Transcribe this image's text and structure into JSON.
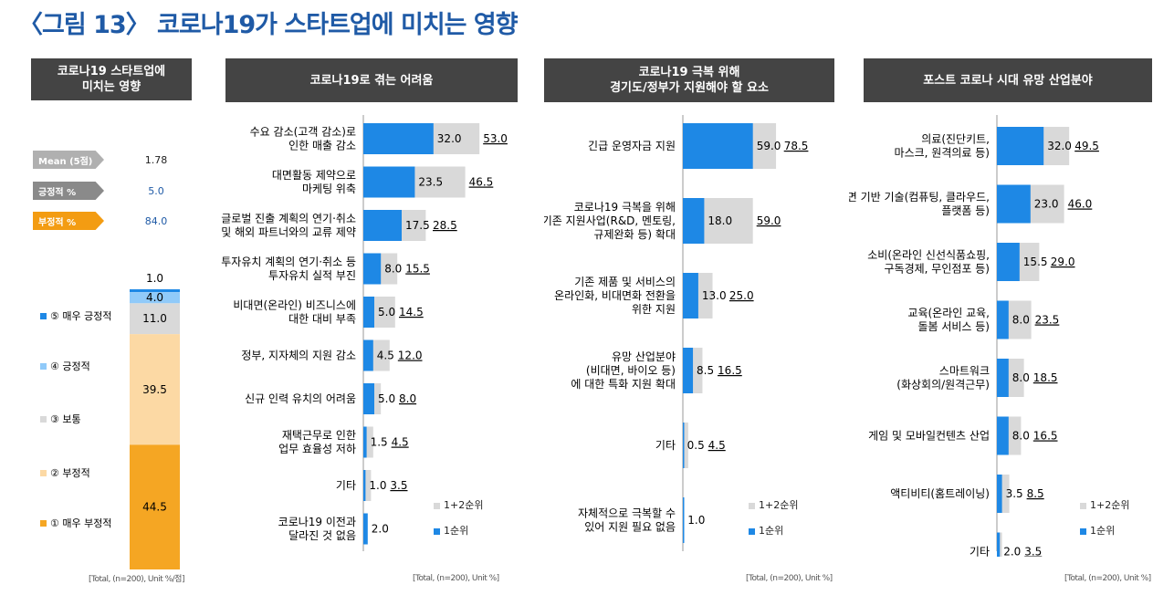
{
  "page_title": "〈그림 13〉 코로나19가 스타트업에 미치는 영향",
  "colors": {
    "accent": "#1f5aa6",
    "bar_first": "#1e88e5",
    "bar_total": "#d9d9d9",
    "header": "#444444"
  },
  "panel1": {
    "header_line1": "코로나19 스타트업에",
    "header_line2": "미치는 영향",
    "stats": [
      {
        "label": "Mean (5점)",
        "value": "1.78",
        "color": "#b0b0b0"
      },
      {
        "label": "긍정적 %",
        "value": "5.0",
        "color": "#8a8a8a"
      },
      {
        "label": "부정적 %",
        "value": "84.0",
        "color": "#f39c12"
      }
    ],
    "source": "[Total, (n=200), Unit %/점]"
  },
  "panel2": {
    "header_line1": "코로나19로 겪는 어려움",
    "header_line2": "",
    "source": "[Total, (n=200), Unit %]",
    "legend_total": "1+2순위",
    "legend_first": "1순위"
  },
  "panel3": {
    "header_line1": "코로나19 극복 위해",
    "header_line2": "경기도/정부가 지원해야 할 요소",
    "source": "[Total, (n=200), Unit %]",
    "legend_total": "1+2순위",
    "legend_first": "1순위"
  },
  "panel4": {
    "header_line1": "포스트 코로나 시대 유망 산업분야",
    "header_line2": "",
    "source": "[Total, (n=200), Unit %]",
    "legend_total": "1+2순위",
    "legend_first": "1순위"
  },
  "chart_data": [
    {
      "type": "bar",
      "subtype": "stacked-100",
      "title": "코로나19 스타트업에 미치는 영향",
      "categories": [
        "⑤ 매우 긍정적",
        "④ 긍정적",
        "③ 보통",
        "② 부정적",
        "① 매우 부정적"
      ],
      "values": [
        1.0,
        4.0,
        11.0,
        39.5,
        44.5
      ],
      "value_labels": [
        "1.0",
        "4.0",
        "11.0",
        "39.5",
        "44.5"
      ],
      "colors": [
        "#1e88e5",
        "#90caf9",
        "#d9d9d9",
        "#fcd9a4",
        "#f5a623"
      ],
      "ylim": [
        0,
        100
      ]
    },
    {
      "type": "bar",
      "orientation": "horizontal",
      "title": "코로나19로 겪는 어려움",
      "categories": [
        [
          "수요 감소(고객 감소)로",
          "인한 매출 감소"
        ],
        [
          "대면활동 제약으로",
          "마케팅 위축"
        ],
        [
          "글로벌 진출 계획의 연기·취소",
          "및 해외 파트너와의 교류 제약"
        ],
        [
          "투자유치 계획의 연기·취소 등",
          "투자유치 실적 부진"
        ],
        [
          "비대면(온라인) 비즈니스에",
          "대한 대비 부족"
        ],
        [
          "정부, 지자체의 지원 감소"
        ],
        [
          "신규 인력 유치의 어려움"
        ],
        [
          "재택근무로 인한",
          "업무 효율성 저하"
        ],
        [
          "기타"
        ],
        [
          "코로나19 이전과",
          "달라진 것 없음"
        ]
      ],
      "series": [
        {
          "name": "1+2순위",
          "values": [
            53.0,
            46.5,
            28.5,
            15.5,
            14.5,
            12.0,
            8.0,
            4.5,
            3.5,
            null
          ],
          "labels": [
            "53.0",
            "46.5",
            "28.5",
            "15.5",
            "14.5",
            "12.0",
            "8.0",
            "4.5",
            "3.5",
            ""
          ]
        },
        {
          "name": "1순위",
          "values": [
            32.0,
            23.5,
            17.5,
            8.0,
            5.0,
            4.5,
            5.0,
            1.5,
            1.0,
            2.0
          ],
          "labels": [
            "32.0",
            "23.5",
            "17.5",
            "8.0",
            "5.0",
            "4.5",
            "5.0",
            "1.5",
            "1.0",
            "2.0"
          ]
        }
      ],
      "xlim": [
        0,
        100
      ]
    },
    {
      "type": "bar",
      "orientation": "horizontal",
      "title": "코로나19 극복 위해 경기도/정부가 지원해야 할 요소",
      "categories": [
        [
          "긴급 운영자금 지원"
        ],
        [
          "코로나19 극복을 위해",
          "기존 지원사업(R&D, 멘토링,",
          "규제완화 등) 확대"
        ],
        [
          "기존 제품 및 서비스의",
          "온라인화, 비대면화 전환을",
          "위한 지원"
        ],
        [
          "유망 산업분야",
          "(비대면, 바이오 등)",
          "에 대한 특화 지원 확대"
        ],
        [
          "기타"
        ],
        [
          "자체적으로 극복할 수",
          "있어 지원 필요 없음"
        ]
      ],
      "series": [
        {
          "name": "1+2순위",
          "values": [
            78.5,
            59.0,
            25.0,
            16.5,
            4.5,
            null
          ],
          "labels": [
            "78.5",
            "59.0",
            "25.0",
            "16.5",
            "4.5",
            ""
          ]
        },
        {
          "name": "1순위",
          "values": [
            59.0,
            18.0,
            13.0,
            8.5,
            0.5,
            1.0
          ],
          "labels": [
            "59.0",
            "18.0",
            "13.0",
            "8.5",
            "0.5",
            "1.0"
          ]
        }
      ],
      "xlim": [
        0,
        100
      ]
    },
    {
      "type": "bar",
      "orientation": "horizontal",
      "title": "포스트 코로나 시대 유망 산업분야",
      "categories": [
        [
          "의료(진단키트,",
          "마스크, 원격의료 등)"
        ],
        [
          "비대면 기반 기술(컴퓨팅, 클라우드,",
          "플랫폼 등)"
        ],
        [
          "소비(온라인 신선식품쇼핑,",
          "구독경제, 무인점포 등)"
        ],
        [
          "교육(온라인 교육,",
          "돌봄 서비스 등)"
        ],
        [
          "스마트워크",
          "(화상회의/원격근무)"
        ],
        [
          "게임 및 모바일컨텐츠 산업"
        ],
        [
          "액티비티(홈트레이닝)"
        ],
        [
          "기타"
        ]
      ],
      "series": [
        {
          "name": "1+2순위",
          "values": [
            49.5,
            46.0,
            29.0,
            23.5,
            18.5,
            16.5,
            8.5,
            3.5
          ],
          "labels": [
            "49.5",
            "46.0",
            "29.0",
            "23.5",
            "18.5",
            "16.5",
            "8.5",
            "3.5"
          ]
        },
        {
          "name": "1순위",
          "values": [
            32.0,
            23.0,
            15.5,
            8.0,
            8.0,
            8.0,
            3.5,
            2.0
          ],
          "labels": [
            "32.0",
            "23.0",
            "15.5",
            "8.0",
            "8.0",
            "8.0",
            "3.5",
            "2.0"
          ]
        }
      ],
      "xlim": [
        0,
        100
      ]
    }
  ]
}
